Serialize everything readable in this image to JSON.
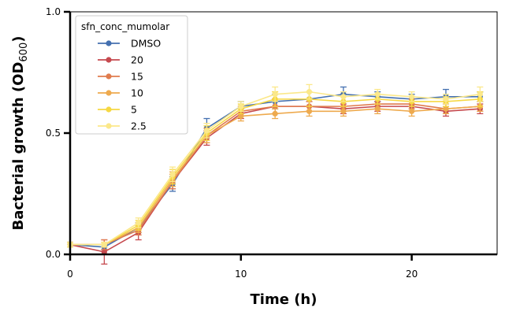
{
  "chart_data": {
    "type": "line",
    "xlabel": "Time (h)",
    "ylabel_main": "Bacterial growth (OD",
    "ylabel_sub": "600",
    "ylabel_end": ")",
    "xlim": [
      0,
      25
    ],
    "ylim": [
      0,
      1
    ],
    "xticks": [
      0,
      10,
      20
    ],
    "yticks": [
      0,
      0.5,
      1
    ],
    "xtick_labels": [
      "0",
      "10",
      "20"
    ],
    "ytick_labels": [
      "0.0",
      "0.5",
      "1.0"
    ],
    "grid": false,
    "legend_title": "sfn_conc_mumolar",
    "legend_position": "top-left",
    "x": [
      0,
      2,
      4,
      6,
      8,
      10,
      12,
      14,
      16,
      18,
      20,
      22,
      24
    ],
    "series": [
      {
        "name": "DMSO",
        "color": "#4470b0",
        "values": [
          0.04,
          0.03,
          0.11,
          0.29,
          0.52,
          0.61,
          0.63,
          0.64,
          0.66,
          0.65,
          0.64,
          0.65,
          0.65
        ],
        "errors": [
          0.01,
          0.01,
          0.02,
          0.03,
          0.04,
          0.02,
          0.03,
          0.03,
          0.03,
          0.02,
          0.02,
          0.03,
          0.02
        ]
      },
      {
        "name": "20",
        "color": "#c64a4f",
        "values": [
          0.04,
          0.01,
          0.09,
          0.3,
          0.48,
          0.58,
          0.61,
          0.61,
          0.6,
          0.61,
          0.61,
          0.59,
          0.6
        ],
        "errors": [
          0.01,
          0.05,
          0.03,
          0.03,
          0.03,
          0.02,
          0.03,
          0.02,
          0.02,
          0.02,
          0.02,
          0.02,
          0.02
        ]
      },
      {
        "name": "15",
        "color": "#e07c4e",
        "values": [
          0.04,
          0.04,
          0.1,
          0.3,
          0.49,
          0.59,
          0.61,
          0.61,
          0.61,
          0.62,
          0.62,
          0.6,
          0.61
        ],
        "errors": [
          0.01,
          0.02,
          0.02,
          0.03,
          0.03,
          0.02,
          0.03,
          0.02,
          0.02,
          0.02,
          0.02,
          0.02,
          0.02
        ]
      },
      {
        "name": "10",
        "color": "#eeaa4e",
        "values": [
          0.04,
          0.04,
          0.11,
          0.31,
          0.49,
          0.57,
          0.58,
          0.59,
          0.59,
          0.6,
          0.59,
          0.6,
          0.61
        ],
        "errors": [
          0.01,
          0.01,
          0.02,
          0.03,
          0.03,
          0.02,
          0.02,
          0.02,
          0.02,
          0.02,
          0.02,
          0.02,
          0.02
        ]
      },
      {
        "name": "5",
        "color": "#f6d843",
        "values": [
          0.04,
          0.04,
          0.12,
          0.32,
          0.5,
          0.6,
          0.64,
          0.64,
          0.63,
          0.64,
          0.63,
          0.63,
          0.64
        ],
        "errors": [
          0.01,
          0.01,
          0.02,
          0.03,
          0.03,
          0.02,
          0.03,
          0.03,
          0.02,
          0.02,
          0.02,
          0.02,
          0.03
        ]
      },
      {
        "name": "2.5",
        "color": "#fbe88a",
        "values": [
          0.04,
          0.04,
          0.13,
          0.33,
          0.51,
          0.61,
          0.66,
          0.67,
          0.65,
          0.66,
          0.65,
          0.64,
          0.66
        ],
        "errors": [
          0.01,
          0.01,
          0.02,
          0.03,
          0.03,
          0.02,
          0.03,
          0.03,
          0.02,
          0.02,
          0.02,
          0.02,
          0.03
        ]
      }
    ]
  }
}
